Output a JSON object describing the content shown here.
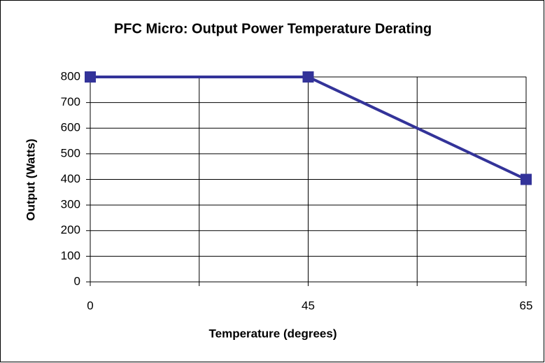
{
  "chart_data": {
    "type": "line",
    "title": "PFC Micro: Output Power Temperature Derating",
    "x_label": "Temperature (degrees)",
    "y_label": "Output (Watts)",
    "categories": [
      "0",
      "45",
      "65"
    ],
    "series": [
      {
        "name": "Output",
        "color": "#333399",
        "values": [
          800,
          800,
          400
        ]
      }
    ],
    "ylim": [
      0,
      800
    ],
    "yticks": [
      0,
      100,
      200,
      300,
      400,
      500,
      600,
      700,
      800
    ],
    "grid": true
  }
}
